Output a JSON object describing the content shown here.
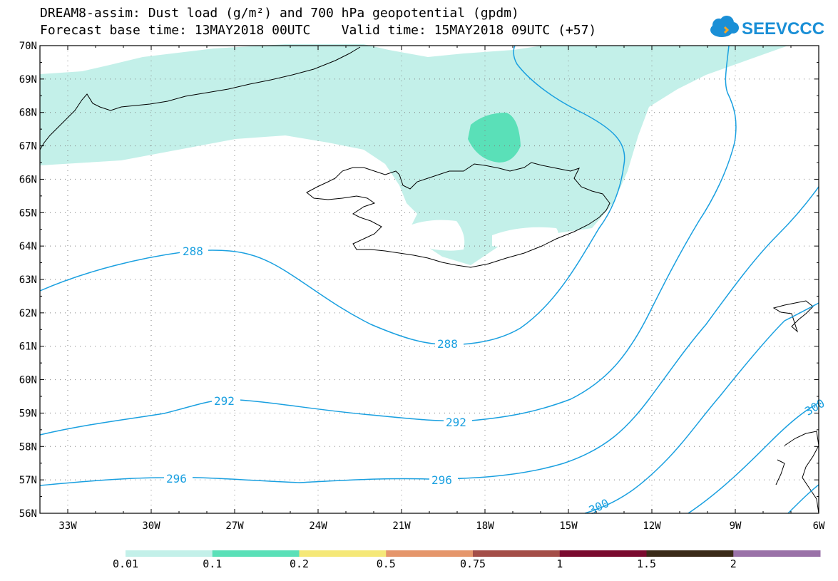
{
  "title": {
    "line1": "DREAM8-assim: Dust load (g/m²) and 700 hPa geopotential (gpdm)",
    "line2": "Forecast base time: 13MAY2018 00UTC    Valid time: 15MAY2018 09UTC (+57)"
  },
  "logo": {
    "text": "SEEVCCC",
    "icon": "cloud-icon",
    "color": "#1a8fd6"
  },
  "lat_labels": [
    "70N",
    "69N",
    "68N",
    "67N",
    "66N",
    "65N",
    "64N",
    "63N",
    "62N",
    "61N",
    "60N",
    "59N",
    "58N",
    "57N",
    "56N"
  ],
  "lon_labels": [
    "33W",
    "30W",
    "27W",
    "24W",
    "21W",
    "18W",
    "15W",
    "12W",
    "9W",
    "6W"
  ],
  "map_extent": {
    "lon_min": -34,
    "lon_max": -6,
    "lat_min": 56,
    "lat_max": 70
  },
  "contour_labels": [
    "288",
    "288",
    "292",
    "292",
    "296",
    "296",
    "300",
    "300"
  ],
  "contour_color": "#1aa0e0",
  "colorbar": {
    "colors": [
      "#c3f0e9",
      "#5ae0b8",
      "#f5e878",
      "#e5966b",
      "#a44e48",
      "#7a0a2e",
      "#3a2a18",
      "#9a72a8"
    ],
    "labels": [
      "0.01",
      "0.1",
      "0.2",
      "0.5",
      "0.75",
      "1",
      "1.5",
      "2"
    ]
  }
}
